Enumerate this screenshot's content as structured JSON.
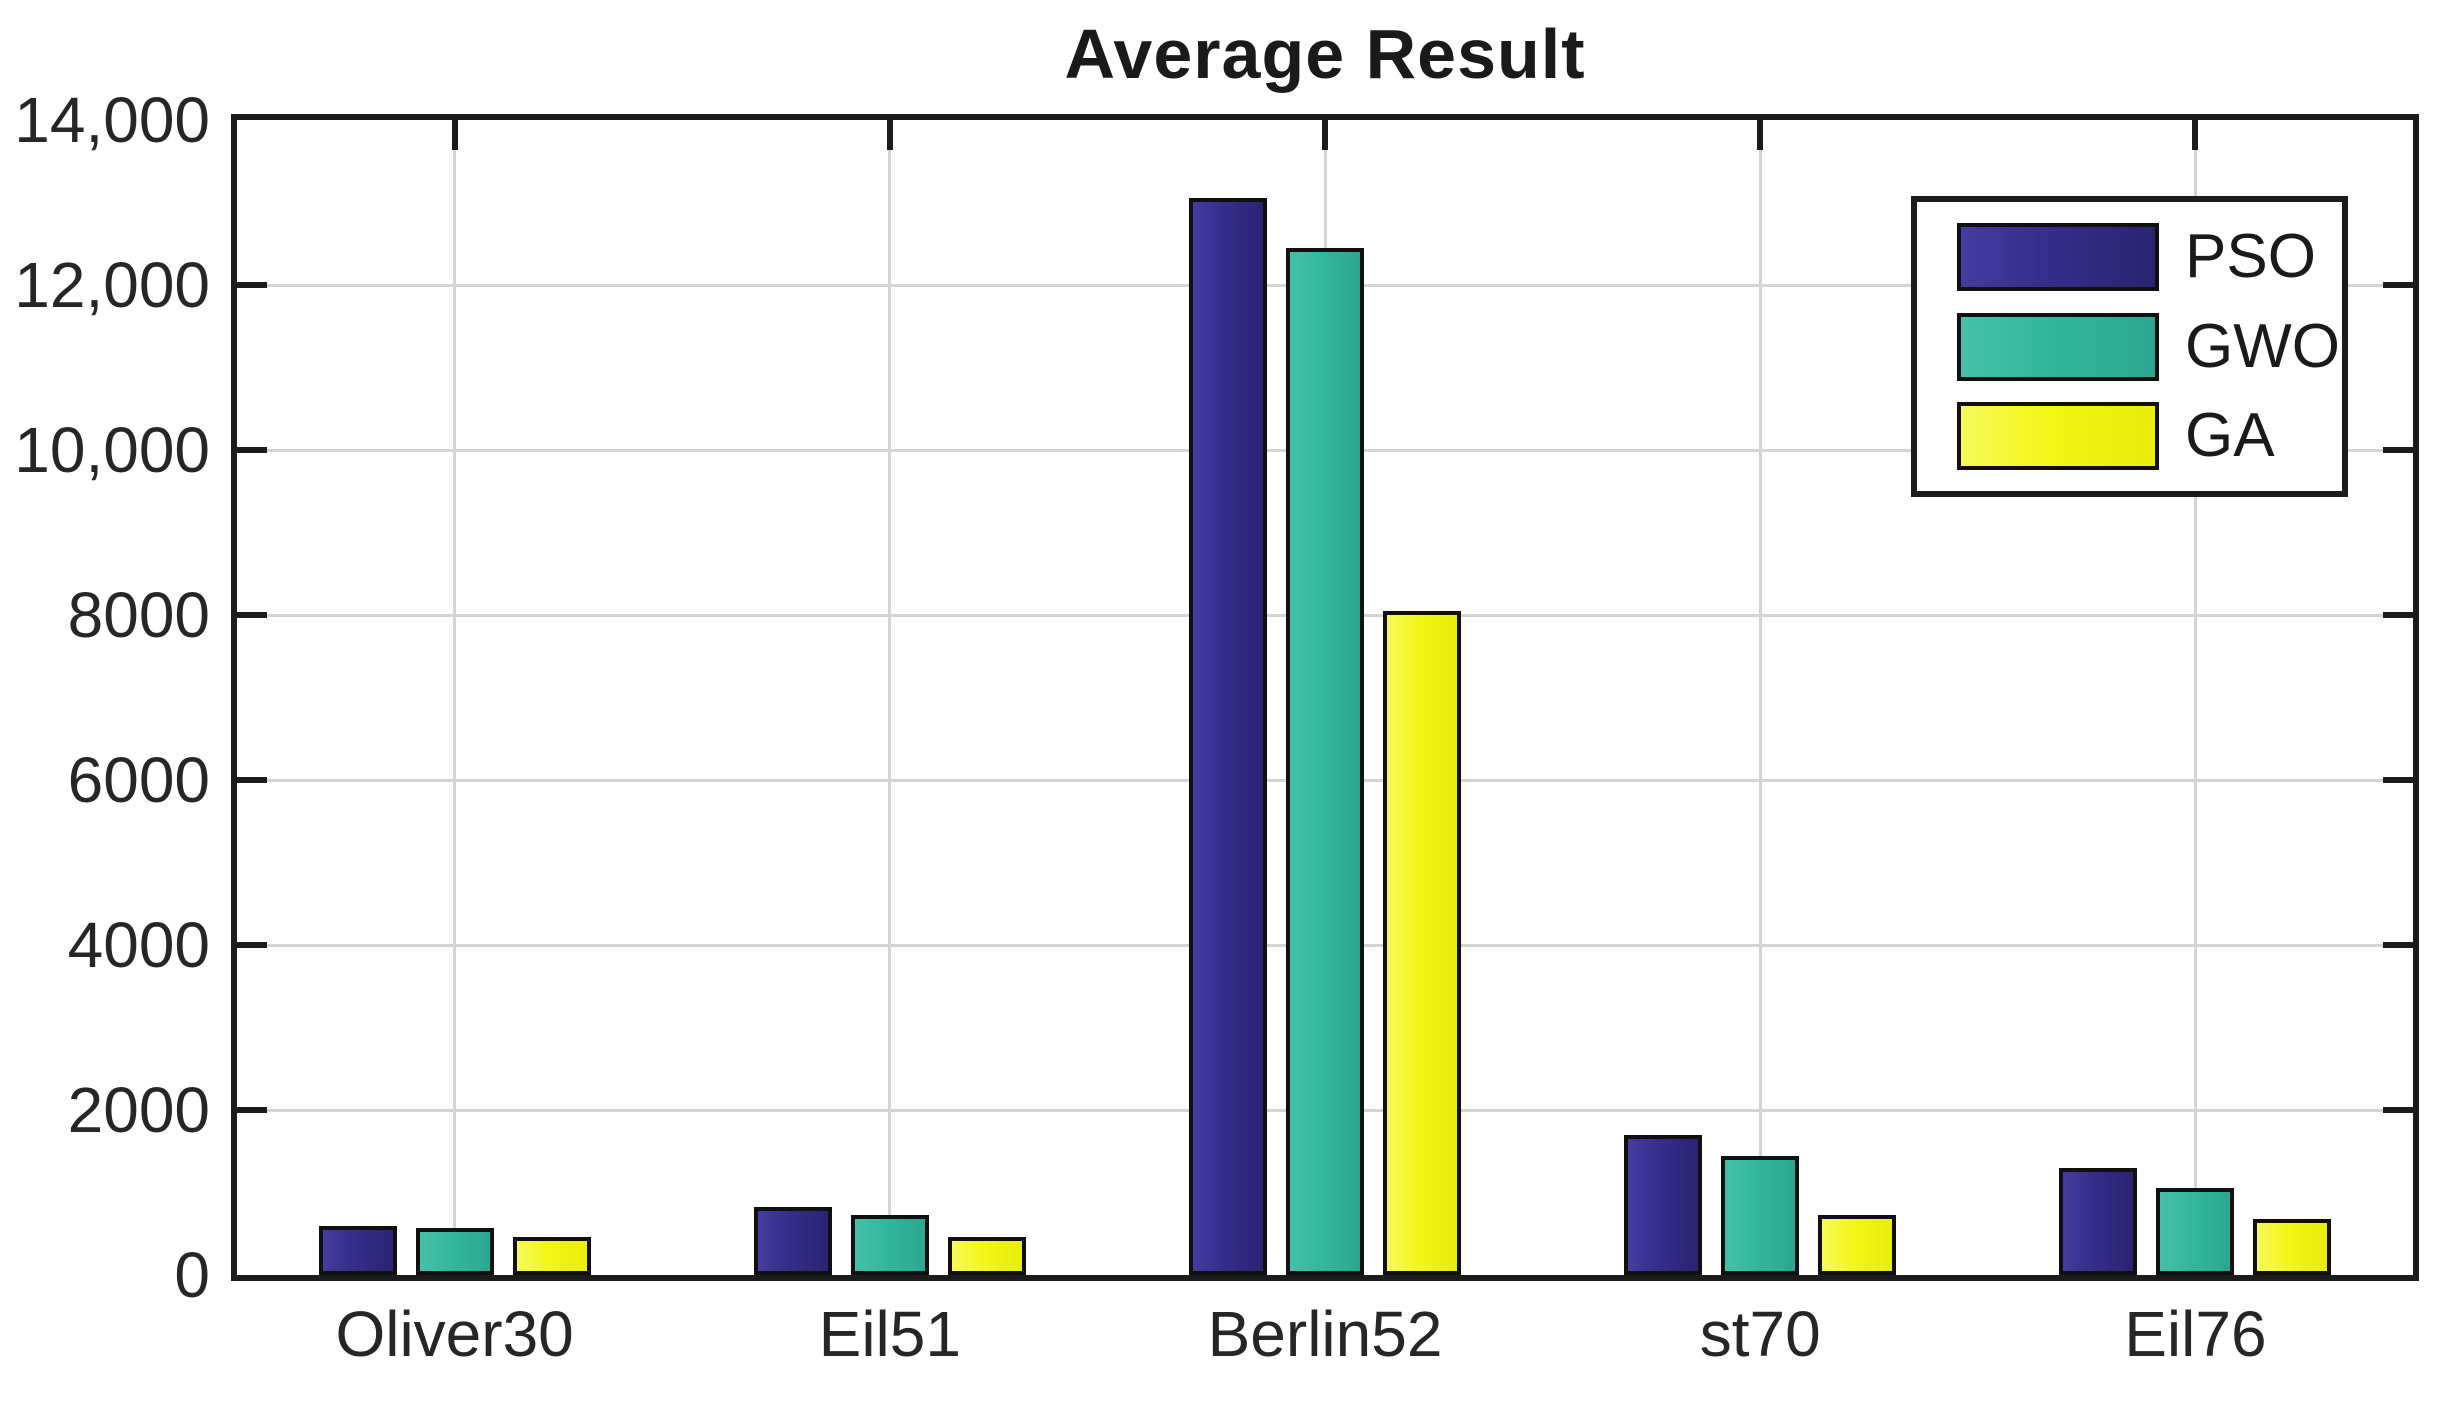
{
  "figure": {
    "title": "Average Result"
  },
  "chart_data": {
    "type": "bar",
    "title": "Average Result",
    "xlabel": "",
    "ylabel": "",
    "categories": [
      "Oliver30",
      "Eil51",
      "Berlin52",
      "st70",
      "Eil76"
    ],
    "series": [
      {
        "name": "PSO",
        "color": "#352D8A",
        "color_light": "#453CA0",
        "color_dark": "#2B2372",
        "values": [
          590,
          820,
          13050,
          1700,
          1300
        ]
      },
      {
        "name": "GWO",
        "color": "#33B69E",
        "color_light": "#45C0A8",
        "color_dark": "#2BA78F",
        "values": [
          575,
          730,
          12450,
          1440,
          1060
        ]
      },
      {
        "name": "GA",
        "color": "#F2F614",
        "color_light": "#F7F95A",
        "color_dark": "#E9ED0A",
        "values": [
          455,
          460,
          8050,
          730,
          680
        ]
      }
    ],
    "ylim": [
      0,
      14000
    ],
    "yticks": [
      {
        "value": 0,
        "label": "0"
      },
      {
        "value": 2000,
        "label": "2000"
      },
      {
        "value": 4000,
        "label": "4000"
      },
      {
        "value": 6000,
        "label": "6000"
      },
      {
        "value": 8000,
        "label": "8000"
      },
      {
        "value": 10000,
        "label": "10,000"
      },
      {
        "value": 12000,
        "label": "12,000"
      },
      {
        "value": 14000,
        "label": "14,000"
      }
    ],
    "grid": true,
    "legend_position": "top-right",
    "legend_entries": [
      "PSO",
      "GWO",
      "GA"
    ]
  },
  "colors": {
    "background": "#ffffff",
    "axis": "#1c1c1c",
    "grid": "#d4d4d4",
    "bar_edge": "#101010",
    "text": "#262626"
  }
}
